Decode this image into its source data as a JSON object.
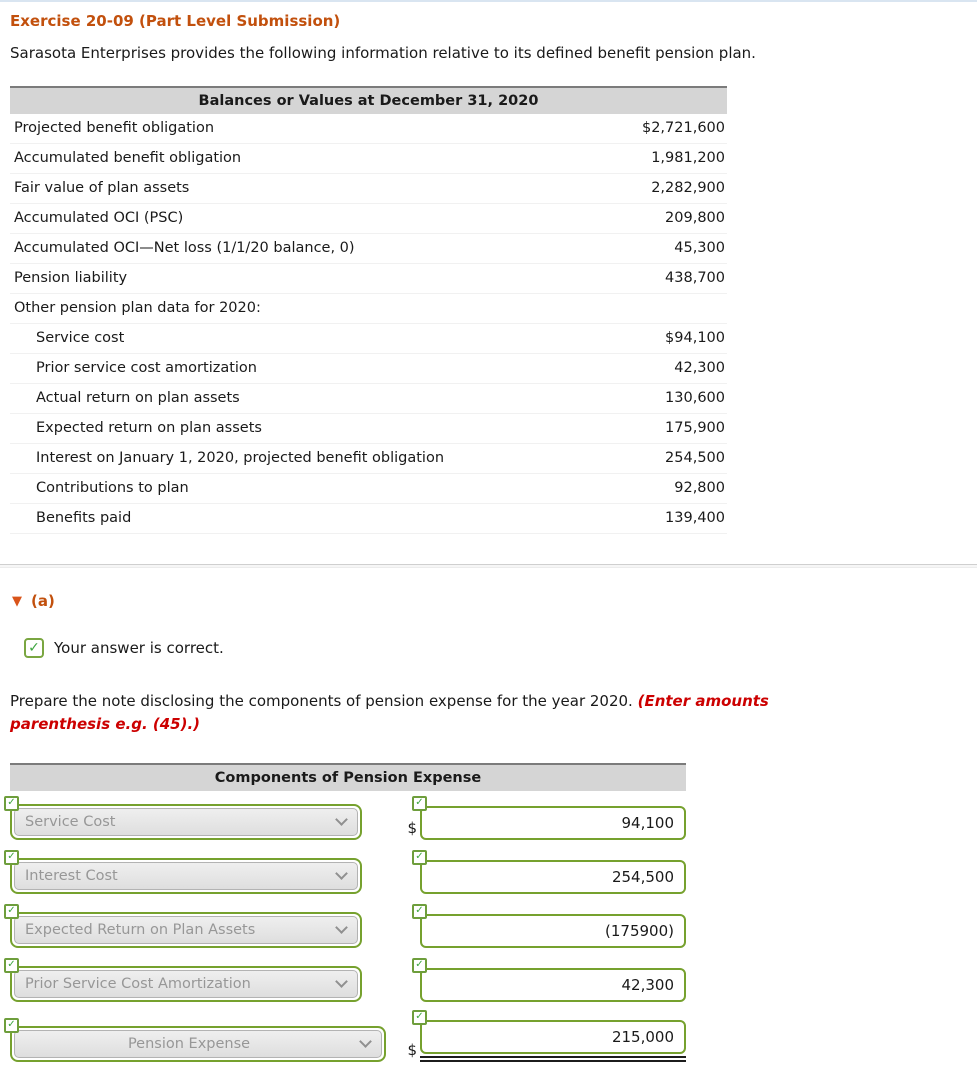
{
  "page": {
    "title": "Exercise 20-09 (Part Level Submission)",
    "intro": "Sarasota Enterprises provides the following information relative to its defined benefit pension plan."
  },
  "icons": {
    "check": "✓",
    "triangle": "▼"
  },
  "colors": {
    "accent_orange": "#c2500d",
    "answer_green": "#76a12e",
    "check_green": "#3da53f",
    "error_red": "#cc0000",
    "header_gray": "#d5d5d5"
  },
  "balances_table": {
    "header": "Balances or Values at December 31, 2020",
    "rows": [
      {
        "label": "Projected benefit obligation",
        "value": "$2,721,600",
        "indent": false
      },
      {
        "label": "Accumulated benefit obligation",
        "value": "1,981,200",
        "indent": false
      },
      {
        "label": "Fair value of plan assets",
        "value": "2,282,900",
        "indent": false
      },
      {
        "label": "Accumulated OCI (PSC)",
        "value": "209,800",
        "indent": false
      },
      {
        "label": "Accumulated OCI—Net loss (1/1/20 balance, 0)",
        "value": "45,300",
        "indent": false
      },
      {
        "label": "Pension liability",
        "value": "438,700",
        "indent": false
      },
      {
        "label": "Other pension plan data for 2020:",
        "value": "",
        "indent": false
      },
      {
        "label": "Service cost",
        "value": "$94,100",
        "indent": true
      },
      {
        "label": "Prior service cost amortization",
        "value": "42,300",
        "indent": true
      },
      {
        "label": "Actual return on plan assets",
        "value": "130,600",
        "indent": true
      },
      {
        "label": "Expected return on plan assets",
        "value": "175,900",
        "indent": true
      },
      {
        "label": "Interest on January 1, 2020, projected benefit obligation",
        "value": "254,500",
        "indent": true
      },
      {
        "label": "Contributions to plan",
        "value": "92,800",
        "indent": true
      },
      {
        "label": "Benefits paid",
        "value": "139,400",
        "indent": true
      }
    ]
  },
  "section_a": {
    "label": "(a)",
    "correct_text": "Your answer is correct.",
    "instruction_normal": "Prepare the note disclosing the components of pension expense for the year 2020. ",
    "instruction_red_line1": "(Enter amounts",
    "instruction_red_line2": "parenthesis e.g. (45).)"
  },
  "components_table": {
    "header": "Components of Pension Expense",
    "rows": [
      {
        "dropdown": "Service Cost",
        "prefix": "$",
        "value": "94,100",
        "centered": false,
        "wide": false,
        "total": false
      },
      {
        "dropdown": "Interest Cost",
        "prefix": "",
        "value": "254,500",
        "centered": false,
        "wide": false,
        "total": false
      },
      {
        "dropdown": "Expected Return on Plan Assets",
        "prefix": "",
        "value": "(175900)",
        "centered": false,
        "wide": false,
        "total": false
      },
      {
        "dropdown": "Prior Service Cost Amortization",
        "prefix": "",
        "value": "42,300",
        "centered": false,
        "wide": false,
        "total": false
      },
      {
        "dropdown": "Pension Expense",
        "prefix": "$",
        "value": "215,000",
        "centered": true,
        "wide": true,
        "total": true
      }
    ]
  }
}
